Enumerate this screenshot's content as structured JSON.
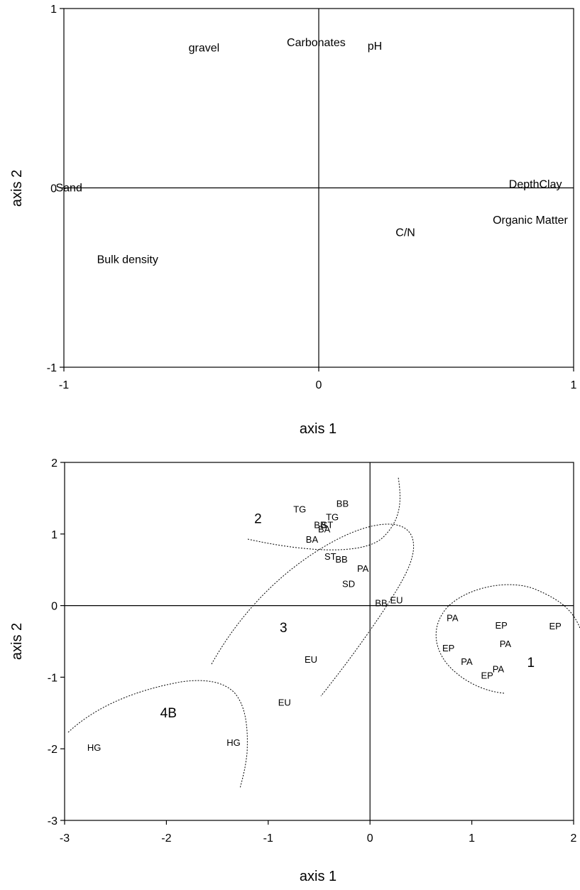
{
  "chart_data": [
    {
      "type": "scatter",
      "xlabel": "axis 1",
      "ylabel": "axis 2",
      "xlim": [
        -1,
        1
      ],
      "ylim": [
        -1,
        1
      ],
      "xticks": [
        "-1",
        "0",
        "1"
      ],
      "yticks": [
        "1",
        "0",
        "-1"
      ],
      "grid": false,
      "points": [
        {
          "label": "gravel",
          "x": -0.45,
          "y": 0.78
        },
        {
          "label": "Carbonates",
          "x": -0.01,
          "y": 0.81
        },
        {
          "label": "pH",
          "x": 0.22,
          "y": 0.79
        },
        {
          "label": "Sand",
          "x": -0.98,
          "y": 0.0
        },
        {
          "label": "DepthClay",
          "x": 0.85,
          "y": 0.02
        },
        {
          "label": "Organic Matter",
          "x": 0.83,
          "y": -0.18
        },
        {
          "label": "C/N",
          "x": 0.34,
          "y": -0.25
        },
        {
          "label": "Bulk density",
          "x": -0.75,
          "y": -0.4
        }
      ]
    },
    {
      "type": "scatter",
      "xlabel": "axis 1",
      "ylabel": "axis 2",
      "xlim": [
        -3,
        2
      ],
      "ylim": [
        -3,
        2
      ],
      "xticks": [
        "-3",
        "-2",
        "-1",
        "0",
        "1",
        "2"
      ],
      "yticks": [
        "2",
        "1",
        "0",
        "-1",
        "-2",
        "-3"
      ],
      "grid": false,
      "points": [
        {
          "label": "TG",
          "x": -0.69,
          "y": 1.35
        },
        {
          "label": "BB",
          "x": -0.27,
          "y": 1.43
        },
        {
          "label": "TG",
          "x": -0.37,
          "y": 1.24
        },
        {
          "label": "BB",
          "x": -0.49,
          "y": 1.13
        },
        {
          "label": "ST",
          "x": -0.42,
          "y": 1.13
        },
        {
          "label": "BA",
          "x": -0.45,
          "y": 1.07
        },
        {
          "label": "BA",
          "x": -0.57,
          "y": 0.93
        },
        {
          "label": "ST",
          "x": -0.39,
          "y": 0.69
        },
        {
          "label": "BB",
          "x": -0.28,
          "y": 0.65
        },
        {
          "label": "PA",
          "x": -0.07,
          "y": 0.52
        },
        {
          "label": "SD",
          "x": -0.21,
          "y": 0.31
        },
        {
          "label": "BB",
          "x": 0.11,
          "y": 0.04
        },
        {
          "label": "EU",
          "x": 0.26,
          "y": 0.08
        },
        {
          "label": "EU",
          "x": -0.58,
          "y": -0.75
        },
        {
          "label": "EU",
          "x": -0.84,
          "y": -1.35
        },
        {
          "label": "PA",
          "x": 0.81,
          "y": -0.17
        },
        {
          "label": "EP",
          "x": 1.29,
          "y": -0.27
        },
        {
          "label": "EP",
          "x": 1.82,
          "y": -0.28
        },
        {
          "label": "EP",
          "x": 0.77,
          "y": -0.59
        },
        {
          "label": "PA",
          "x": 1.33,
          "y": -0.53
        },
        {
          "label": "PA",
          "x": 0.95,
          "y": -0.78
        },
        {
          "label": "PA",
          "x": 1.26,
          "y": -0.88
        },
        {
          "label": "EP",
          "x": 1.15,
          "y": -0.97
        },
        {
          "label": "HG",
          "x": -2.71,
          "y": -1.98
        },
        {
          "label": "HG",
          "x": -1.34,
          "y": -1.91
        }
      ],
      "annotations": [
        {
          "text": "2",
          "x": -1.1,
          "y": 1.22
        },
        {
          "text": "3",
          "x": -0.85,
          "y": -0.3
        },
        {
          "text": "1",
          "x": 1.58,
          "y": -0.79
        },
        {
          "text": "4B",
          "x": -1.98,
          "y": -1.49
        }
      ]
    }
  ]
}
